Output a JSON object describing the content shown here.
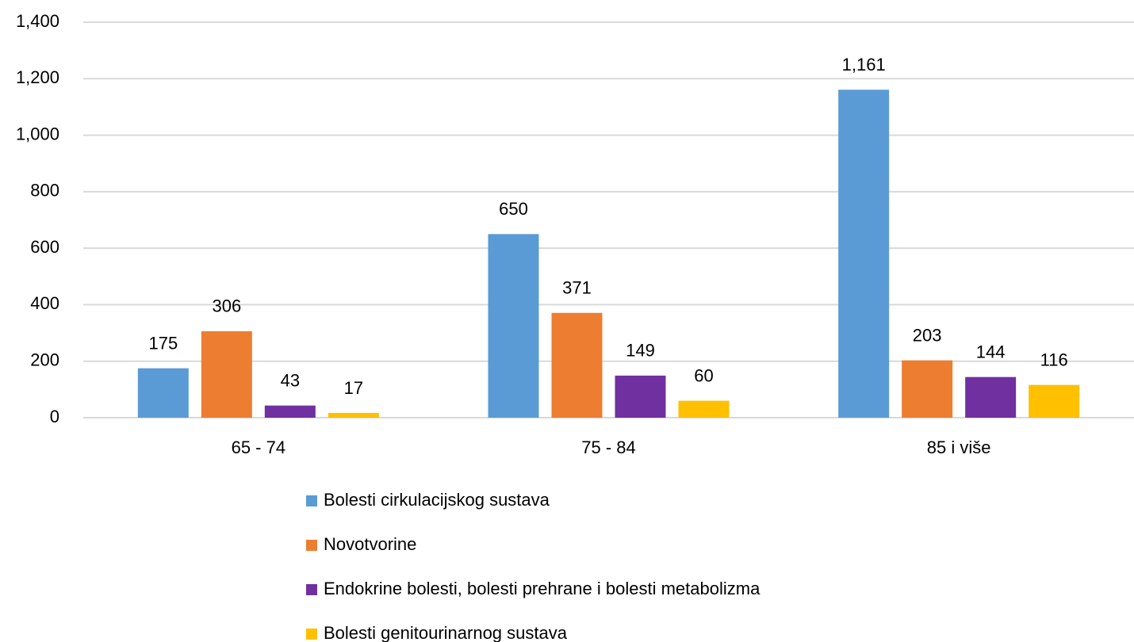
{
  "chart_data": {
    "type": "bar",
    "categories": [
      "65 - 74",
      "75 - 84",
      "85 i više"
    ],
    "series": [
      {
        "name": "Bolesti cirkulacijskog sustava",
        "color": "#5b9bd5",
        "values": [
          175,
          650,
          1161
        ],
        "value_labels": [
          "175",
          "650",
          "1,161"
        ]
      },
      {
        "name": "Novotvorine",
        "color": "#ed7d31",
        "values": [
          306,
          371,
          203
        ]
      },
      {
        "name": "Endokrine bolesti, bolesti prehrane i bolesti metabolizma",
        "color": "#7030a0",
        "values": [
          43,
          149,
          144
        ]
      },
      {
        "name": "Bolesti genitourinarnog sustava",
        "color": "#ffc000",
        "values": [
          17,
          60,
          116
        ]
      }
    ],
    "ylim": [
      0,
      1400
    ],
    "yticks": [
      0,
      200,
      400,
      600,
      800,
      {
        "value": 1000,
        "label": "1,000"
      },
      {
        "value": 1200,
        "label": "1,200"
      },
      {
        "value": 1400,
        "label": "1,400"
      }
    ],
    "grid": true,
    "legend": "bottom"
  }
}
